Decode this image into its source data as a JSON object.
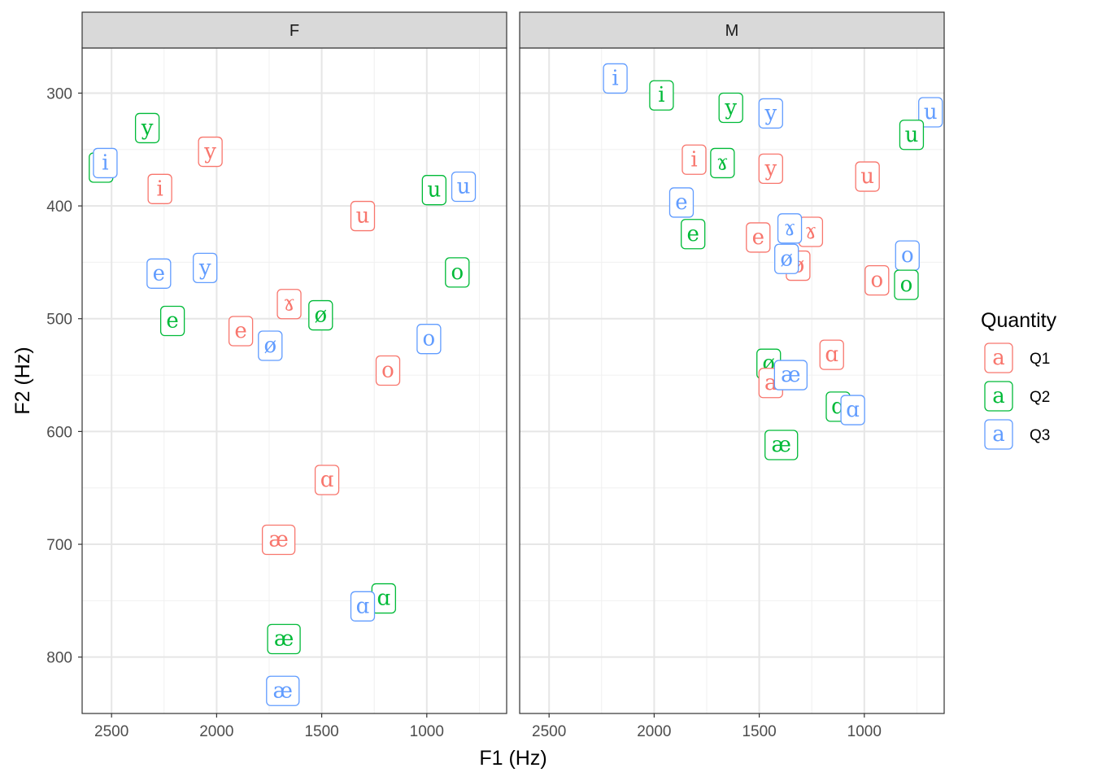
{
  "chart_data": {
    "type": "scatter",
    "title": "",
    "xlabel": "F1 (Hz)",
    "ylabel": "F2 (Hz)",
    "x_reversed": true,
    "y_reversed": true,
    "xlim": [
      2640,
      620
    ],
    "ylim": [
      260,
      850
    ],
    "x_ticks": [
      2500,
      2000,
      1500,
      1000
    ],
    "y_ticks": [
      300,
      400,
      500,
      600,
      700,
      800
    ],
    "x_tick_labels": [
      "2500",
      "2000",
      "1500",
      "1000"
    ],
    "y_tick_labels": [
      "300",
      "400",
      "500",
      "600",
      "700",
      "800"
    ],
    "grid": true,
    "legend": {
      "title": "Quantity",
      "position": "right",
      "key_glyph": "a",
      "entries": [
        {
          "name": "Q1",
          "color": "#F8766D"
        },
        {
          "name": "Q2",
          "color": "#00BA38"
        },
        {
          "name": "Q3",
          "color": "#619CFF"
        }
      ]
    },
    "facets": [
      {
        "name": "F",
        "points": [
          {
            "label": "i",
            "quantity": "Q2",
            "x": 2550,
            "y": 366
          },
          {
            "label": "i",
            "quantity": "Q3",
            "x": 2530,
            "y": 362
          },
          {
            "label": "y",
            "quantity": "Q2",
            "x": 2330,
            "y": 331
          },
          {
            "label": "i",
            "quantity": "Q1",
            "x": 2270,
            "y": 385
          },
          {
            "label": "y",
            "quantity": "Q1",
            "x": 2030,
            "y": 352
          },
          {
            "label": "e",
            "quantity": "Q3",
            "x": 2275,
            "y": 460
          },
          {
            "label": "y",
            "quantity": "Q3",
            "x": 2055,
            "y": 455
          },
          {
            "label": "e",
            "quantity": "Q2",
            "x": 2210,
            "y": 502
          },
          {
            "label": "e",
            "quantity": "Q1",
            "x": 1885,
            "y": 511
          },
          {
            "label": "ø",
            "quantity": "Q3",
            "x": 1745,
            "y": 524
          },
          {
            "label": "ɤ",
            "quantity": "Q1",
            "x": 1655,
            "y": 487
          },
          {
            "label": "ø",
            "quantity": "Q2",
            "x": 1505,
            "y": 497
          },
          {
            "label": "u",
            "quantity": "Q1",
            "x": 1305,
            "y": 409
          },
          {
            "label": "u",
            "quantity": "Q2",
            "x": 965,
            "y": 386
          },
          {
            "label": "u",
            "quantity": "Q3",
            "x": 825,
            "y": 383
          },
          {
            "label": "o",
            "quantity": "Q2",
            "x": 855,
            "y": 459
          },
          {
            "label": "o",
            "quantity": "Q3",
            "x": 990,
            "y": 518
          },
          {
            "label": "o",
            "quantity": "Q1",
            "x": 1185,
            "y": 546
          },
          {
            "label": "ɑ",
            "quantity": "Q1",
            "x": 1475,
            "y": 643
          },
          {
            "label": "æ",
            "quantity": "Q1",
            "x": 1705,
            "y": 696
          },
          {
            "label": "ɑ",
            "quantity": "Q2",
            "x": 1205,
            "y": 748
          },
          {
            "label": "ɑ",
            "quantity": "Q3",
            "x": 1305,
            "y": 755
          },
          {
            "label": "æ",
            "quantity": "Q2",
            "x": 1680,
            "y": 784
          },
          {
            "label": "æ",
            "quantity": "Q3",
            "x": 1685,
            "y": 830
          }
        ]
      },
      {
        "name": "M",
        "points": [
          {
            "label": "i",
            "quantity": "Q3",
            "x": 2185,
            "y": 287
          },
          {
            "label": "i",
            "quantity": "Q2",
            "x": 1965,
            "y": 302
          },
          {
            "label": "y",
            "quantity": "Q2",
            "x": 1635,
            "y": 313
          },
          {
            "label": "y",
            "quantity": "Q3",
            "x": 1445,
            "y": 318
          },
          {
            "label": "u",
            "quantity": "Q3",
            "x": 685,
            "y": 317
          },
          {
            "label": "u",
            "quantity": "Q2",
            "x": 775,
            "y": 337
          },
          {
            "label": "i",
            "quantity": "Q1",
            "x": 1810,
            "y": 359
          },
          {
            "label": "ɤ",
            "quantity": "Q2",
            "x": 1675,
            "y": 362
          },
          {
            "label": "y",
            "quantity": "Q1",
            "x": 1445,
            "y": 367
          },
          {
            "label": "u",
            "quantity": "Q1",
            "x": 985,
            "y": 374
          },
          {
            "label": "e",
            "quantity": "Q3",
            "x": 1870,
            "y": 397
          },
          {
            "label": "e",
            "quantity": "Q2",
            "x": 1815,
            "y": 425
          },
          {
            "label": "e",
            "quantity": "Q1",
            "x": 1505,
            "y": 428
          },
          {
            "label": "ɤ",
            "quantity": "Q1",
            "x": 1255,
            "y": 423
          },
          {
            "label": "ɤ",
            "quantity": "Q3",
            "x": 1355,
            "y": 420
          },
          {
            "label": "ø",
            "quantity": "Q1",
            "x": 1315,
            "y": 453
          },
          {
            "label": "ø",
            "quantity": "Q3",
            "x": 1370,
            "y": 447
          },
          {
            "label": "o",
            "quantity": "Q3",
            "x": 795,
            "y": 444
          },
          {
            "label": "o",
            "quantity": "Q1",
            "x": 940,
            "y": 466
          },
          {
            "label": "o",
            "quantity": "Q2",
            "x": 800,
            "y": 470
          },
          {
            "label": "ɑ",
            "quantity": "Q1",
            "x": 1155,
            "y": 532
          },
          {
            "label": "ø",
            "quantity": "Q2",
            "x": 1455,
            "y": 540
          },
          {
            "label": "a",
            "quantity": "Q1",
            "x": 1445,
            "y": 557
          },
          {
            "label": "æ",
            "quantity": "Q3",
            "x": 1350,
            "y": 550
          },
          {
            "label": "ɑ",
            "quantity": "Q2",
            "x": 1125,
            "y": 578
          },
          {
            "label": "ɑ",
            "quantity": "Q3",
            "x": 1055,
            "y": 581
          },
          {
            "label": "æ",
            "quantity": "Q2",
            "x": 1395,
            "y": 612
          }
        ]
      }
    ]
  }
}
